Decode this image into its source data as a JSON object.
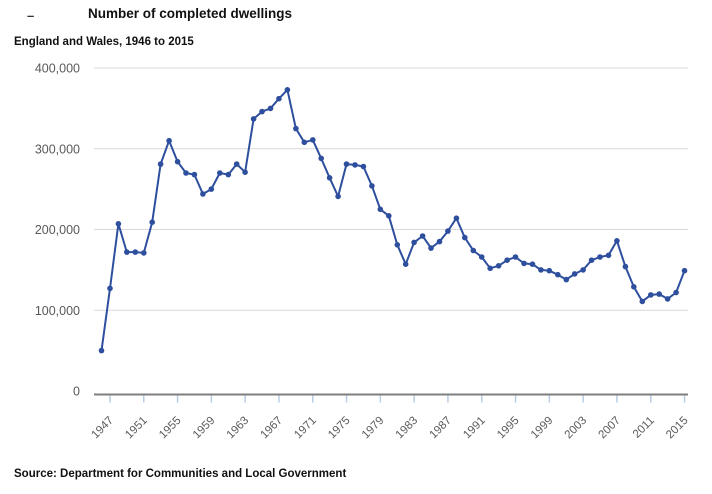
{
  "header": {
    "dash_glyph": "–",
    "title": "Number of completed dwellings",
    "subtitle": "England and Wales, 1946 to 2015"
  },
  "source": "Source: Department for Communities and Local Government",
  "colors": {
    "line": "#2e4f9e",
    "marker": "#2e4f9e",
    "grid": "#d9d9d9",
    "axis": "#7f7f7f",
    "tick": "#b9cde4",
    "label": "#595959"
  },
  "chart_data": {
    "type": "line",
    "title": "Number of completed dwellings",
    "subtitle": "England and Wales, 1946 to 2015",
    "xlabel": "",
    "ylabel": "",
    "ylim": [
      0,
      400000
    ],
    "grid": "horizontal-only",
    "legend": "none",
    "marker": "circle",
    "yticks": [
      0,
      100000,
      200000,
      300000,
      400000
    ],
    "ytick_labels": [
      "0",
      "100,000",
      "200,000",
      "300,000",
      "400,000"
    ],
    "xticks": [
      1947,
      1951,
      1955,
      1959,
      1963,
      1967,
      1971,
      1975,
      1979,
      1983,
      1987,
      1991,
      1995,
      1999,
      2003,
      2007,
      2011,
      2015
    ],
    "x": [
      1946,
      1947,
      1948,
      1949,
      1950,
      1951,
      1952,
      1953,
      1954,
      1955,
      1956,
      1957,
      1958,
      1959,
      1960,
      1961,
      1962,
      1963,
      1964,
      1965,
      1966,
      1967,
      1968,
      1969,
      1970,
      1971,
      1972,
      1973,
      1974,
      1975,
      1976,
      1977,
      1978,
      1979,
      1980,
      1981,
      1982,
      1983,
      1984,
      1985,
      1986,
      1987,
      1988,
      1989,
      1990,
      1991,
      1992,
      1993,
      1994,
      1995,
      1996,
      1997,
      1998,
      1999,
      2000,
      2001,
      2002,
      2003,
      2004,
      2005,
      2006,
      2007,
      2008,
      2009,
      2010,
      2011,
      2012,
      2013,
      2014,
      2015
    ],
    "values": [
      50000,
      127000,
      207000,
      172000,
      172000,
      171000,
      209000,
      281000,
      310000,
      284000,
      270000,
      268000,
      244000,
      250000,
      270000,
      268000,
      281000,
      271000,
      337000,
      346000,
      350000,
      362000,
      373000,
      325000,
      308000,
      311000,
      288000,
      264000,
      241000,
      281000,
      280000,
      278000,
      254000,
      225000,
      217000,
      181000,
      157000,
      184000,
      192000,
      177000,
      185000,
      198000,
      214000,
      190000,
      174000,
      166000,
      152000,
      155000,
      162000,
      166000,
      158000,
      157000,
      150000,
      149000,
      144000,
      138000,
      145000,
      150000,
      162000,
      166000,
      168000,
      186000,
      154000,
      129000,
      111000,
      119000,
      120000,
      114000,
      122000,
      149000
    ]
  }
}
